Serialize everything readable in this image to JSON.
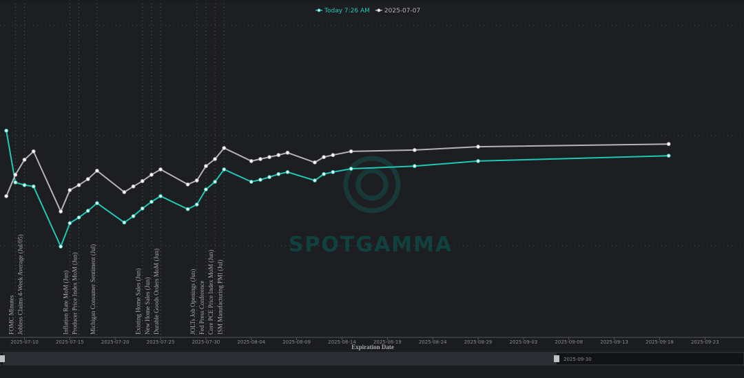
{
  "chart_data": {
    "type": "line",
    "x_label": "Expiration Date",
    "watermark": "SPOTGAMMA",
    "range_end_label": "2025-09-30",
    "xlim": [
      "2025-07-07",
      "2025-09-27"
    ],
    "ylim": [
      0,
      100
    ],
    "xticks": [
      "2025-07-10",
      "2025-07-15",
      "2025-07-20",
      "2025-07-25",
      "2025-07-30",
      "2025-08-04",
      "2025-08-09",
      "2025-08-14",
      "2025-08-19",
      "2025-08-24",
      "2025-08-29",
      "2025-09-03",
      "2025-09-08",
      "2025-09-13",
      "2025-09-18",
      "2025-09-23"
    ],
    "x": [
      "2025-07-08",
      "2025-07-09",
      "2025-07-10",
      "2025-07-11",
      "2025-07-14",
      "2025-07-15",
      "2025-07-16",
      "2025-07-17",
      "2025-07-18",
      "2025-07-21",
      "2025-07-22",
      "2025-07-23",
      "2025-07-24",
      "2025-07-25",
      "2025-07-28",
      "2025-07-29",
      "2025-07-30",
      "2025-07-31",
      "2025-08-01",
      "2025-08-04",
      "2025-08-05",
      "2025-08-06",
      "2025-08-07",
      "2025-08-08",
      "2025-08-11",
      "2025-08-12",
      "2025-08-13",
      "2025-08-15",
      "2025-08-22",
      "2025-08-29",
      "2025-09-19"
    ],
    "series": [
      {
        "name": "Today 7:26 AM",
        "color": "#1fc9b4",
        "values": [
          61.9,
          46.4,
          45.6,
          45.2,
          27.2,
          34.2,
          35.9,
          37.9,
          40.2,
          34.4,
          36.3,
          38.6,
          40.6,
          42.3,
          38.4,
          39.8,
          44.3,
          46.6,
          50.3,
          46.6,
          47.2,
          48.0,
          48.9,
          49.5,
          47.0,
          48.9,
          49.5,
          50.5,
          51.3,
          52.8,
          54.4
        ]
      },
      {
        "name": "2025-07-07",
        "color": "#b4b4b4",
        "values": [
          42.3,
          48.7,
          53.2,
          55.7,
          37.7,
          44.1,
          45.6,
          47.4,
          49.9,
          43.5,
          45.2,
          46.8,
          48.7,
          50.3,
          45.8,
          47.0,
          51.3,
          53.4,
          56.7,
          52.8,
          53.4,
          54.0,
          54.6,
          55.3,
          52.4,
          54.0,
          54.6,
          55.7,
          56.1,
          57.1,
          57.9
        ]
      }
    ],
    "events": [
      {
        "date": "2025-07-09",
        "label": "FOMC Minutes"
      },
      {
        "date": "2025-07-10",
        "label": "Jobless Claims 4-Week Average (Jul/05)"
      },
      {
        "date": "2025-07-15",
        "label": "Inflation Rate MoM (Jun)"
      },
      {
        "date": "2025-07-16",
        "label": "Producer Price Index MoM (Jun)"
      },
      {
        "date": "2025-07-18",
        "label": "Michigan Consumer Sentiment (Jul)"
      },
      {
        "date": "2025-07-23",
        "label": "Existing Home Sales (Jun)"
      },
      {
        "date": "2025-07-24",
        "label": "New Home Sales (Jun)"
      },
      {
        "date": "2025-07-25",
        "label": "Durable Goods Orders MoM (Jun)"
      },
      {
        "date": "2025-07-29",
        "label": "JOLTs Job Openings (Jun)"
      },
      {
        "date": "2025-07-30",
        "label": "Fed Press Conference"
      },
      {
        "date": "2025-07-31",
        "label": "Core PCE Price Index MoM (Jun)"
      },
      {
        "date": "2025-08-01",
        "label": "ISM Manufacturing PMI (Jul)"
      }
    ]
  }
}
